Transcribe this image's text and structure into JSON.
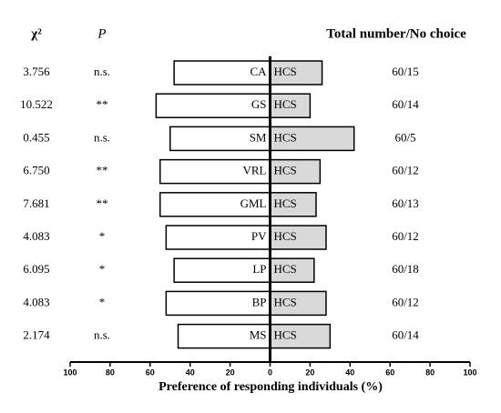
{
  "chart_data": {
    "type": "diverging-bar",
    "headers": {
      "chi_square": "χ²",
      "p": "P",
      "total_no_choice": "Total number/No choice"
    },
    "categories": [
      "CA",
      "GS",
      "SM",
      "VRL",
      "GML",
      "PV",
      "LP",
      "BP",
      "MS"
    ],
    "chi_square": [
      "3.756",
      "10.522",
      "0.455",
      "6.750",
      "7.681",
      "4.083",
      "6.095",
      "4.083",
      "2.174"
    ],
    "p": [
      "n.s.",
      "**",
      "n.s.",
      "**",
      "**",
      "*",
      "*",
      "*",
      "n.s."
    ],
    "total_no_choice": [
      "60/15",
      "60/14",
      "60/5",
      "60/12",
      "60/13",
      "60/12",
      "60/18",
      "60/12",
      "60/14"
    ],
    "series": [
      {
        "color": "#ffffff",
        "values": [
          -48,
          -57,
          -50,
          -55,
          -55,
          -52,
          -48,
          -52,
          -46
        ]
      },
      {
        "name": "HCS",
        "color": "#d9d9d9",
        "values": [
          26,
          20,
          42,
          25,
          23,
          28,
          22,
          28,
          30
        ]
      }
    ],
    "xlabel": "Preference of responding individuals (%)",
    "xlim": [
      -100,
      100
    ],
    "xticks": [
      {
        "value": -100,
        "label": "100"
      },
      {
        "value": -80,
        "label": "80"
      },
      {
        "value": -60,
        "label": "60"
      },
      {
        "value": -40,
        "label": "40"
      },
      {
        "value": -20,
        "label": "20"
      },
      0,
      20,
      40,
      60,
      80,
      100
    ]
  }
}
